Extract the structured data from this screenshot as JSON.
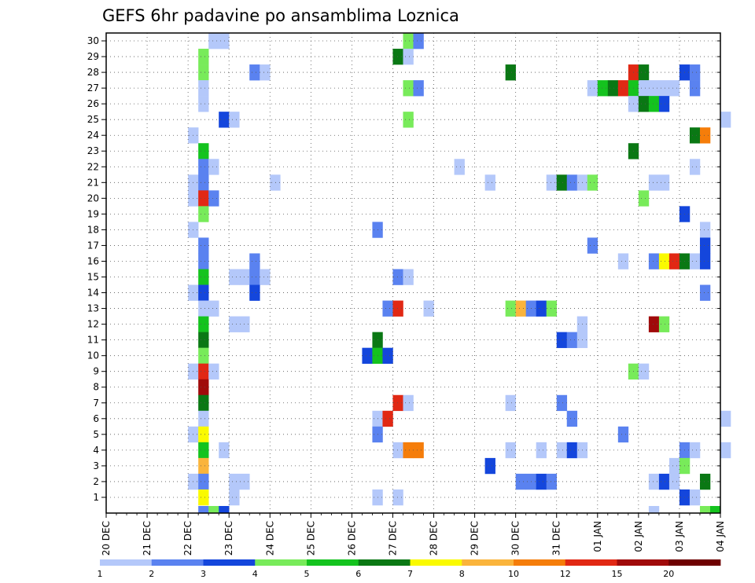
{
  "chart_data": {
    "type": "heatmap",
    "title": "GEFS 6hr padavine po ansamblima Loznica",
    "xlabel": "",
    "ylabel": "",
    "x_tick_labels": [
      "20 DEC",
      "21 DEC",
      "22 DEC",
      "23 DEC",
      "24 DEC",
      "25 DEC",
      "26 DEC",
      "27 DEC",
      "28 DEC",
      "29 DEC",
      "30 DEC",
      "31 DEC",
      "01 JAN",
      "02 JAN",
      "03 JAN",
      "04 JAN"
    ],
    "x_range_days": [
      0,
      15
    ],
    "y_tick_labels": [
      "1",
      "2",
      "3",
      "4",
      "5",
      "6",
      "7",
      "8",
      "9",
      "10",
      "11",
      "12",
      "13",
      "14",
      "15",
      "16",
      "17",
      "18",
      "19",
      "20",
      "21",
      "22",
      "23",
      "24",
      "25",
      "26",
      "27",
      "28",
      "29",
      "30"
    ],
    "y_range": [
      0,
      30
    ],
    "grid": "dotted",
    "colorbar": {
      "labels": [
        "1",
        "2",
        "3",
        "4",
        "5",
        "6",
        "7",
        "8",
        "10",
        "12",
        "15",
        "20"
      ],
      "colors": [
        "#b4c8fa",
        "#5a82f0",
        "#1446dc",
        "#78eb5a",
        "#14c31e",
        "#0a7814",
        "#fafa00",
        "#fab43c",
        "#f57d0a",
        "#e12814",
        "#a00a0a",
        "#6e0000"
      ]
    },
    "cells_note": "each cell: [member, day offset from 20 DEC at 6h steps, bin index 0-11 into colorbar colors]",
    "cells": [
      [
        30,
        2.5,
        0
      ],
      [
        30,
        2.75,
        0
      ],
      [
        30,
        7.25,
        3
      ],
      [
        30,
        7.5,
        1
      ],
      [
        29,
        2.25,
        3
      ],
      [
        29,
        7.0,
        5
      ],
      [
        29,
        7.25,
        0
      ],
      [
        28,
        2.25,
        3
      ],
      [
        28,
        3.5,
        1
      ],
      [
        28,
        3.75,
        0
      ],
      [
        28,
        9.75,
        5
      ],
      [
        28,
        12.75,
        9
      ],
      [
        28,
        13.0,
        5
      ],
      [
        28,
        14.0,
        2
      ],
      [
        28,
        14.25,
        1
      ],
      [
        27,
        2.25,
        0
      ],
      [
        27,
        7.25,
        3
      ],
      [
        27,
        7.5,
        1
      ],
      [
        27,
        11.75,
        0
      ],
      [
        27,
        12.0,
        4
      ],
      [
        27,
        12.25,
        5
      ],
      [
        27,
        12.5,
        9
      ],
      [
        27,
        12.75,
        4
      ],
      [
        27,
        13.0,
        0
      ],
      [
        27,
        13.25,
        0
      ],
      [
        27,
        13.5,
        0
      ],
      [
        27,
        13.75,
        0
      ],
      [
        27,
        14.25,
        1
      ],
      [
        26,
        2.25,
        0
      ],
      [
        26,
        12.75,
        0
      ],
      [
        26,
        13.0,
        5
      ],
      [
        26,
        13.25,
        4
      ],
      [
        26,
        13.5,
        2
      ],
      [
        25,
        2.75,
        2
      ],
      [
        25,
        3.0,
        0
      ],
      [
        25,
        7.25,
        3
      ],
      [
        25,
        15.0,
        0
      ],
      [
        24,
        2.0,
        0
      ],
      [
        24,
        14.25,
        5
      ],
      [
        24,
        14.5,
        8
      ],
      [
        23,
        2.25,
        4
      ],
      [
        23,
        12.75,
        5
      ],
      [
        22,
        2.25,
        1
      ],
      [
        22,
        2.5,
        0
      ],
      [
        22,
        8.5,
        0
      ],
      [
        22,
        14.25,
        0
      ],
      [
        21,
        2.0,
        0
      ],
      [
        21,
        2.25,
        1
      ],
      [
        21,
        4.0,
        0
      ],
      [
        21,
        9.25,
        0
      ],
      [
        21,
        10.75,
        0
      ],
      [
        21,
        11.0,
        5
      ],
      [
        21,
        11.25,
        1
      ],
      [
        21,
        11.5,
        0
      ],
      [
        21,
        11.75,
        3
      ],
      [
        21,
        13.25,
        0
      ],
      [
        21,
        13.5,
        0
      ],
      [
        20,
        2.0,
        0
      ],
      [
        20,
        2.25,
        9
      ],
      [
        20,
        2.5,
        1
      ],
      [
        20,
        13.0,
        3
      ],
      [
        19,
        2.25,
        3
      ],
      [
        19,
        14.0,
        2
      ],
      [
        18,
        2.0,
        0
      ],
      [
        18,
        6.5,
        1
      ],
      [
        18,
        14.5,
        0
      ],
      [
        17,
        2.25,
        1
      ],
      [
        17,
        11.75,
        1
      ],
      [
        17,
        14.5,
        2
      ],
      [
        16,
        2.25,
        1
      ],
      [
        16,
        3.5,
        1
      ],
      [
        16,
        12.5,
        0
      ],
      [
        16,
        13.25,
        1
      ],
      [
        16,
        13.5,
        6
      ],
      [
        16,
        13.75,
        9
      ],
      [
        16,
        14.0,
        5
      ],
      [
        16,
        14.25,
        0
      ],
      [
        16,
        14.5,
        2
      ],
      [
        15,
        2.25,
        4
      ],
      [
        15,
        3.0,
        0
      ],
      [
        15,
        3.25,
        0
      ],
      [
        15,
        3.5,
        1
      ],
      [
        15,
        3.75,
        0
      ],
      [
        15,
        7.0,
        1
      ],
      [
        15,
        7.25,
        0
      ],
      [
        14,
        2.0,
        0
      ],
      [
        14,
        2.25,
        2
      ],
      [
        14,
        3.5,
        2
      ],
      [
        14,
        14.5,
        1
      ],
      [
        13,
        2.25,
        0
      ],
      [
        13,
        2.5,
        0
      ],
      [
        13,
        6.75,
        1
      ],
      [
        13,
        7.0,
        9
      ],
      [
        13,
        7.75,
        0
      ],
      [
        13,
        9.75,
        3
      ],
      [
        13,
        10.0,
        7
      ],
      [
        13,
        10.25,
        1
      ],
      [
        13,
        10.5,
        2
      ],
      [
        13,
        10.75,
        3
      ],
      [
        12,
        2.25,
        4
      ],
      [
        12,
        3.0,
        0
      ],
      [
        12,
        3.25,
        0
      ],
      [
        12,
        11.5,
        0
      ],
      [
        12,
        13.25,
        10
      ],
      [
        12,
        13.5,
        3
      ],
      [
        11,
        2.25,
        5
      ],
      [
        11,
        6.5,
        5
      ],
      [
        11,
        11.0,
        2
      ],
      [
        11,
        11.25,
        1
      ],
      [
        11,
        11.5,
        0
      ],
      [
        10,
        2.25,
        3
      ],
      [
        10,
        6.25,
        2
      ],
      [
        10,
        6.5,
        4
      ],
      [
        10,
        6.75,
        2
      ],
      [
        9,
        2.0,
        0
      ],
      [
        9,
        2.25,
        9
      ],
      [
        9,
        2.5,
        0
      ],
      [
        9,
        12.75,
        3
      ],
      [
        9,
        13.0,
        0
      ],
      [
        8,
        2.25,
        10
      ],
      [
        7,
        2.25,
        5
      ],
      [
        7,
        7.0,
        9
      ],
      [
        7,
        7.25,
        0
      ],
      [
        7,
        9.75,
        0
      ],
      [
        7,
        11.0,
        1
      ],
      [
        6,
        2.25,
        0
      ],
      [
        6,
        6.5,
        0
      ],
      [
        6,
        6.75,
        9
      ],
      [
        6,
        11.25,
        1
      ],
      [
        6,
        15.0,
        0
      ],
      [
        5,
        2.0,
        0
      ],
      [
        5,
        2.25,
        6
      ],
      [
        5,
        6.5,
        1
      ],
      [
        5,
        12.5,
        1
      ],
      [
        4,
        2.25,
        4
      ],
      [
        4,
        2.75,
        0
      ],
      [
        4,
        7.0,
        0
      ],
      [
        4,
        7.25,
        8
      ],
      [
        4,
        7.5,
        8
      ],
      [
        4,
        9.75,
        0
      ],
      [
        4,
        10.5,
        0
      ],
      [
        4,
        11.0,
        0
      ],
      [
        4,
        11.25,
        2
      ],
      [
        4,
        11.5,
        0
      ],
      [
        4,
        14.0,
        1
      ],
      [
        4,
        14.25,
        0
      ],
      [
        4,
        15.0,
        0
      ],
      [
        3,
        2.25,
        7
      ],
      [
        3,
        9.25,
        2
      ],
      [
        3,
        13.75,
        0
      ],
      [
        3,
        14.0,
        3
      ],
      [
        2,
        2.0,
        0
      ],
      [
        2,
        2.25,
        1
      ],
      [
        2,
        3.0,
        0
      ],
      [
        2,
        3.25,
        0
      ],
      [
        2,
        10.0,
        1
      ],
      [
        2,
        10.25,
        1
      ],
      [
        2,
        10.5,
        2
      ],
      [
        2,
        10.75,
        1
      ],
      [
        2,
        13.25,
        0
      ],
      [
        2,
        13.5,
        2
      ],
      [
        2,
        13.75,
        0
      ],
      [
        2,
        14.5,
        5
      ],
      [
        1,
        2.25,
        6
      ],
      [
        1,
        3.0,
        0
      ],
      [
        1,
        6.5,
        0
      ],
      [
        1,
        7.0,
        0
      ],
      [
        1,
        14.0,
        2
      ],
      [
        1,
        14.25,
        0
      ],
      [
        0,
        2.25,
        1
      ],
      [
        0,
        2.5,
        3
      ],
      [
        0,
        2.75,
        2
      ],
      [
        0,
        13.25,
        0
      ],
      [
        0,
        14.5,
        3
      ],
      [
        0,
        14.75,
        4
      ]
    ]
  }
}
